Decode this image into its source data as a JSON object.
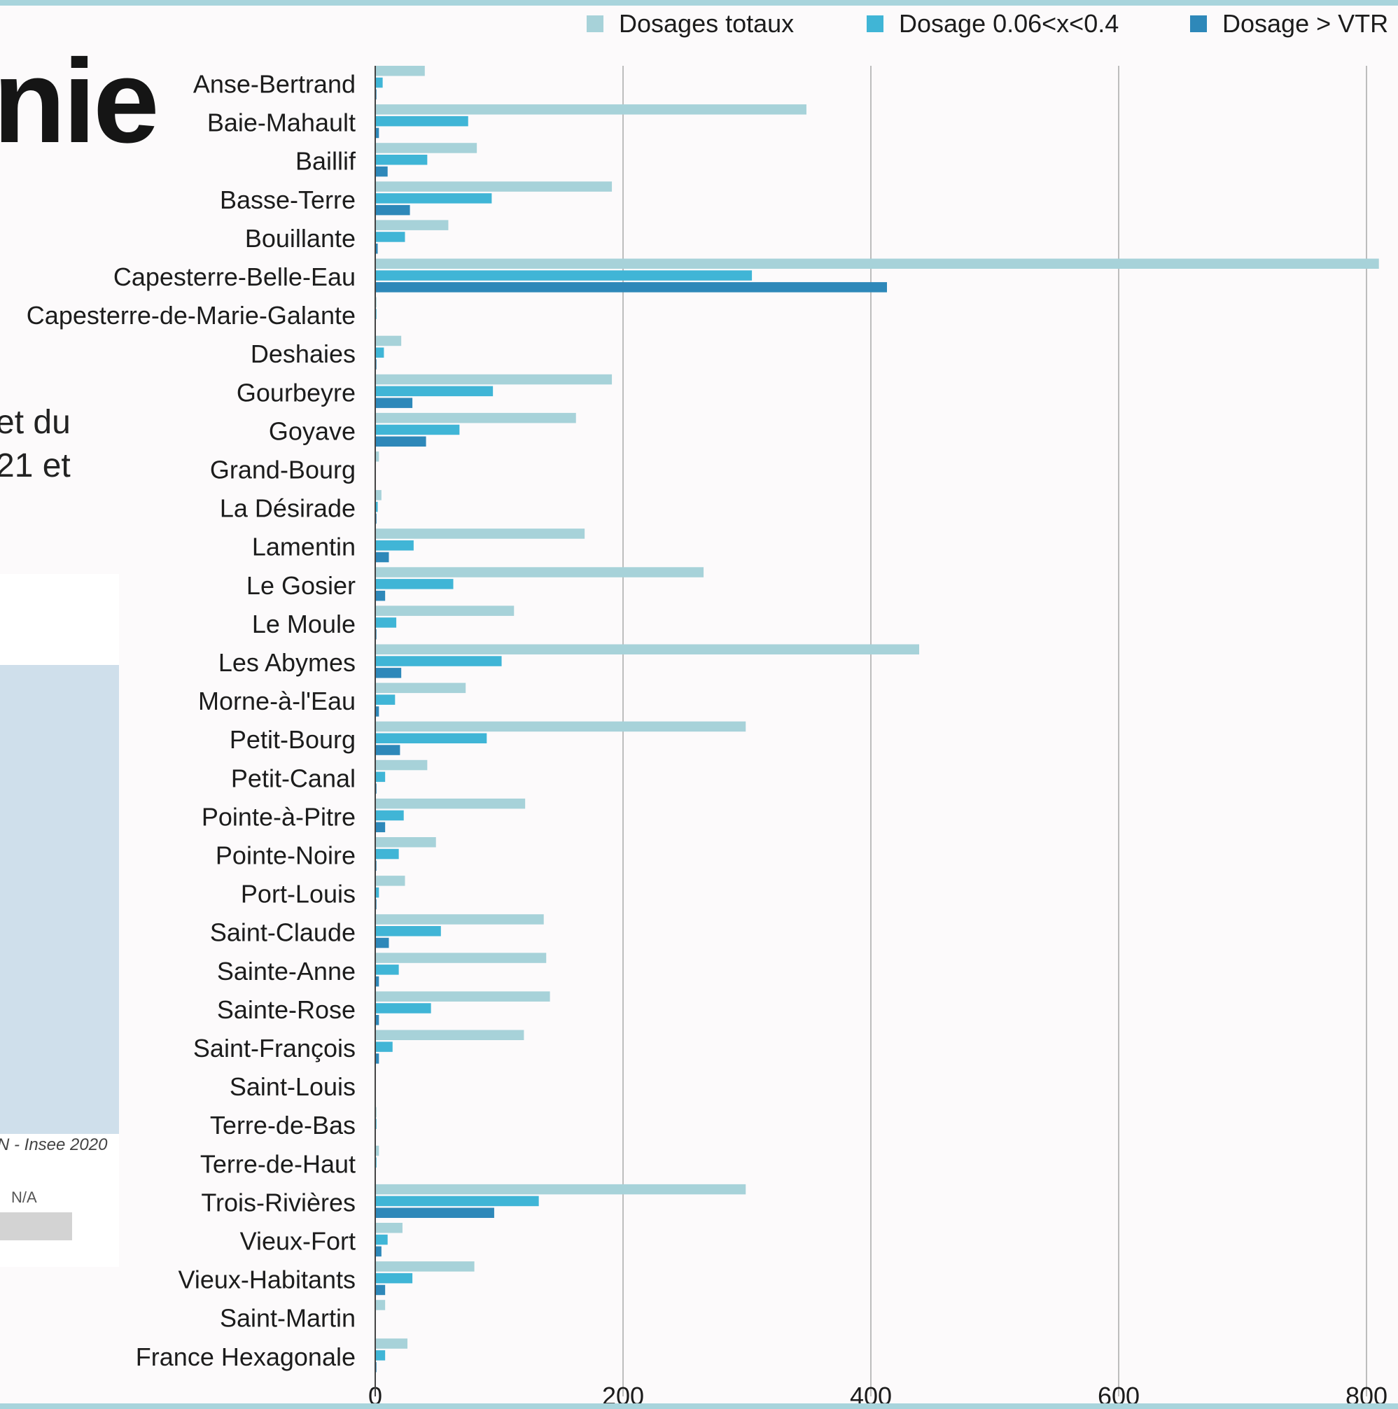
{
  "background": {
    "heading_fragment": "nie",
    "text_line_1": "et du",
    "text_line_2": "21 et",
    "source_fragment": "N - Insee 2020",
    "na_label": "N/A"
  },
  "chart_data": {
    "type": "bar",
    "orientation": "horizontal",
    "categories": [
      "Anse-Bertrand",
      "Baie-Mahault",
      "Baillif",
      "Basse-Terre",
      "Bouillante",
      "Capesterre-Belle-Eau",
      "Capesterre-de-Marie-Galante",
      "Deshaies",
      "Gourbeyre",
      "Goyave",
      "Grand-Bourg",
      "La Désirade",
      "Lamentin",
      "Le Gosier",
      "Le Moule",
      "Les Abymes",
      "Morne-à-l'Eau",
      "Petit-Bourg",
      "Petit-Canal",
      "Pointe-à-Pitre",
      "Pointe-Noire",
      "Port-Louis",
      "Saint-Claude",
      "Sainte-Anne",
      "Sainte-Rose",
      "Saint-François",
      "Saint-Louis",
      "Terre-de-Bas",
      "Terre-de-Haut",
      "Trois-Rivières",
      "Vieux-Fort",
      "Vieux-Habitants",
      "Saint-Martin",
      "France Hexagonale"
    ],
    "series": [
      {
        "name": "Dosages totaux",
        "color": "#a7d2d9",
        "values": [
          40,
          348,
          82,
          191,
          59,
          810,
          1,
          21,
          191,
          162,
          3,
          5,
          169,
          265,
          112,
          439,
          73,
          299,
          42,
          121,
          49,
          24,
          136,
          138,
          141,
          120,
          0,
          1,
          3,
          299,
          22,
          80,
          8,
          26
        ]
      },
      {
        "name": "Dosage 0.06<x<0.4",
        "color": "#40b5d6",
        "values": [
          6,
          75,
          42,
          94,
          24,
          304,
          1,
          7,
          95,
          68,
          0,
          2,
          31,
          63,
          17,
          102,
          16,
          90,
          8,
          23,
          19,
          3,
          53,
          19,
          45,
          14,
          0,
          1,
          1,
          132,
          10,
          30,
          0,
          8
        ]
      },
      {
        "name": "Dosage > VTR",
        "color": "#2e88b9",
        "values": [
          1,
          3,
          10,
          28,
          2,
          413,
          0,
          1,
          30,
          41,
          0,
          1,
          11,
          8,
          1,
          21,
          3,
          20,
          1,
          8,
          1,
          1,
          11,
          3,
          3,
          3,
          0,
          0,
          0,
          96,
          5,
          8,
          0,
          1
        ]
      }
    ],
    "x_ticks": [
      0,
      200,
      400,
      600,
      800
    ],
    "xlim": [
      0,
      820
    ],
    "grid": true,
    "legend_position": "top-right"
  }
}
